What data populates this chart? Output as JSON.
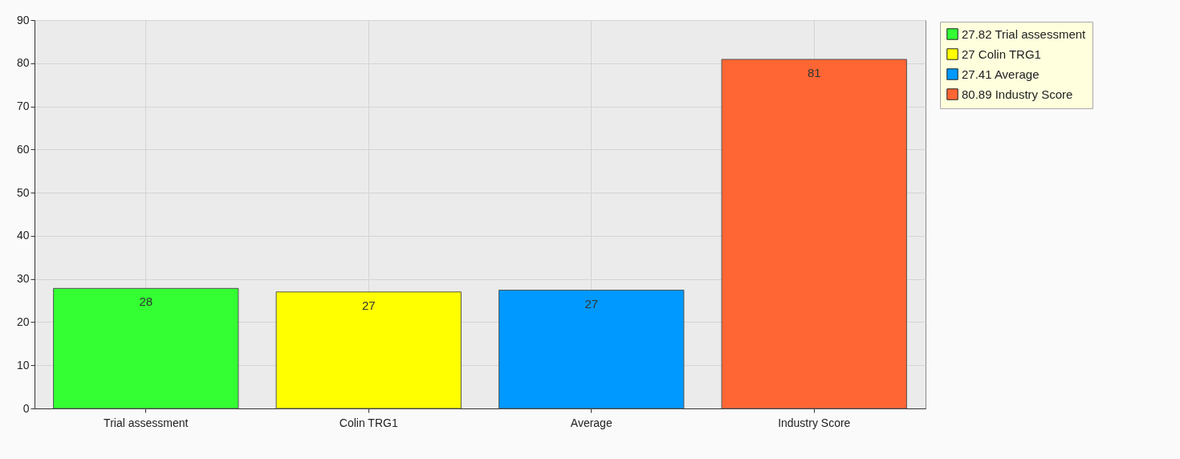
{
  "chart_data": {
    "type": "bar",
    "categories": [
      "Trial assessment",
      "Colin TRG1",
      "Average",
      "Industry Score"
    ],
    "series": [
      {
        "name": "27.82 Trial assessment",
        "color": "#33ff33",
        "values": [
          27.82,
          null,
          null,
          null
        ],
        "value_labels": [
          "28",
          null,
          null,
          null
        ]
      },
      {
        "name": "27 Colin TRG1",
        "color": "#ffff00",
        "values": [
          null,
          27,
          null,
          null
        ],
        "value_labels": [
          null,
          "27",
          null,
          null
        ]
      },
      {
        "name": "27.41 Average",
        "color": "#0099ff",
        "values": [
          null,
          null,
          27.41,
          null
        ],
        "value_labels": [
          null,
          null,
          "27",
          null
        ]
      },
      {
        "name": "80.89 Industry Score",
        "color": "#ff6633",
        "values": [
          null,
          null,
          null,
          80.89
        ],
        "value_labels": [
          null,
          null,
          null,
          "81"
        ]
      }
    ],
    "ylim": [
      0,
      90
    ],
    "yticks": [
      0,
      10,
      20,
      30,
      40,
      50,
      60,
      70,
      80,
      90
    ],
    "grid": true,
    "legend": "top right"
  }
}
